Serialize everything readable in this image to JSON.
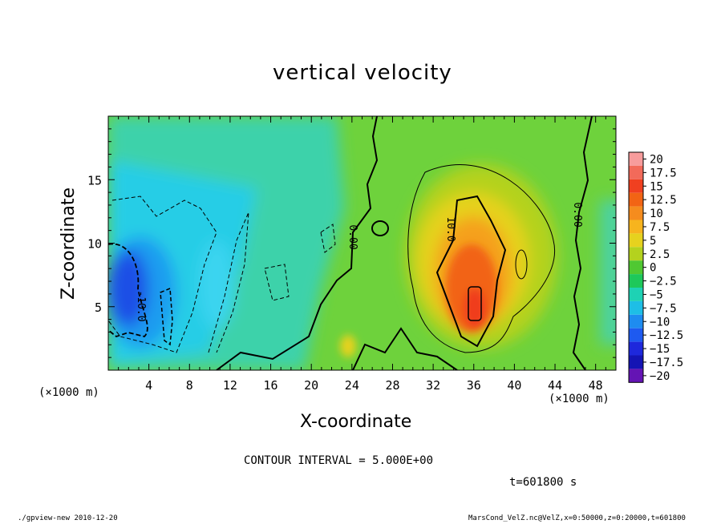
{
  "chart_data": {
    "type": "heatmap",
    "title": "vertical velocity",
    "xlabel": "X-coordinate",
    "ylabel": "Z-coordinate",
    "x_unit_left": "(×1000 m)",
    "x_unit_right": "(×1000 m)",
    "xlim": [
      0,
      50
    ],
    "ylim": [
      0,
      20
    ],
    "x_ticks": [
      4,
      8,
      12,
      16,
      20,
      24,
      28,
      32,
      36,
      40,
      44,
      48
    ],
    "y_ticks": [
      5,
      10,
      15
    ],
    "colorbar": {
      "levels": [
        20,
        17.5,
        15,
        12.5,
        10,
        7.5,
        5,
        2.5,
        0,
        -2.5,
        -5,
        -7.5,
        -10,
        -12.5,
        -15,
        -17.5,
        -20
      ],
      "labels": [
        "20",
        "17.5",
        "15",
        "12.5",
        "10",
        "7.5",
        "5",
        "2.5",
        "0",
        "−2.5",
        "−5",
        "−7.5",
        "−10",
        "−12.5",
        "−15",
        "−17.5",
        "−20"
      ],
      "colors": [
        "#f79c9c",
        "#f26a5a",
        "#f04020",
        "#f26414",
        "#f58c1e",
        "#f7b41e",
        "#e6d21e",
        "#b4d21e",
        "#50c832",
        "#1ec85a",
        "#1ed2b4",
        "#1ebee6",
        "#1e8cf0",
        "#1e5af0",
        "#1e28dc",
        "#1414b4",
        "#6414b4"
      ]
    },
    "contour_labels": [
      "0.00",
      "10.0",
      "0.00",
      "-10.0"
    ],
    "features": [
      {
        "sign": "positive",
        "x": 35,
        "z": 7.5,
        "max": 14
      },
      {
        "sign": "negative",
        "x": 2,
        "z": 7,
        "min": -12
      }
    ],
    "contour_interval": "CONTOUR INTERVAL = 5.000E+00",
    "time_label": "t=601800 s"
  },
  "footer": {
    "left": "./gpview-new   2010-12-20",
    "right": "MarsCond_VelZ.nc@VelZ,x=0:50000,z=0:20000,t=601800"
  }
}
